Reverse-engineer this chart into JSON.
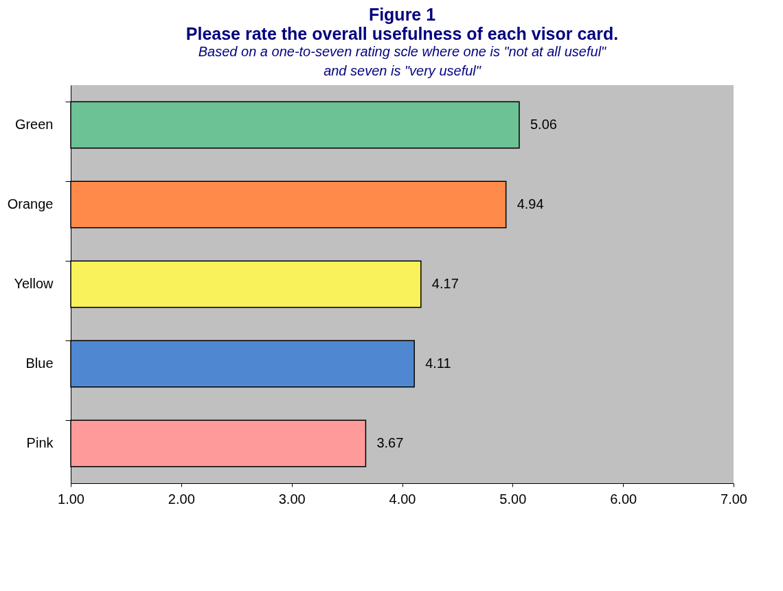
{
  "chart_data": {
    "type": "bar",
    "orientation": "horizontal",
    "title": "Figure 1",
    "subtitle": "Please rate the overall usefulness of each visor card.",
    "annotations": [
      "Based on a one-to-seven  rating scle where one is \"not at all useful\" and seven is \"very useful\""
    ],
    "categories": [
      "Green",
      "Orange",
      "Yellow",
      "Blue",
      "Pink"
    ],
    "values": [
      5.06,
      4.94,
      4.17,
      4.11,
      3.67
    ],
    "colors": [
      "#6cc195",
      "#ff8a4a",
      "#faf25a",
      "#4f88d0",
      "#ff9a9a"
    ],
    "xlim": [
      1,
      7
    ],
    "xticks": [
      {
        "value": 1,
        "label": "1.00"
      },
      {
        "value": 2,
        "label": "2.00"
      },
      {
        "value": 3,
        "label": "3.00"
      },
      {
        "value": 4,
        "label": "4.00"
      },
      {
        "value": 5,
        "label": "5.00"
      },
      {
        "value": 6,
        "label": "6.00"
      },
      {
        "value": 7,
        "label": "7.00"
      }
    ],
    "data_labels": true,
    "grid": false
  }
}
